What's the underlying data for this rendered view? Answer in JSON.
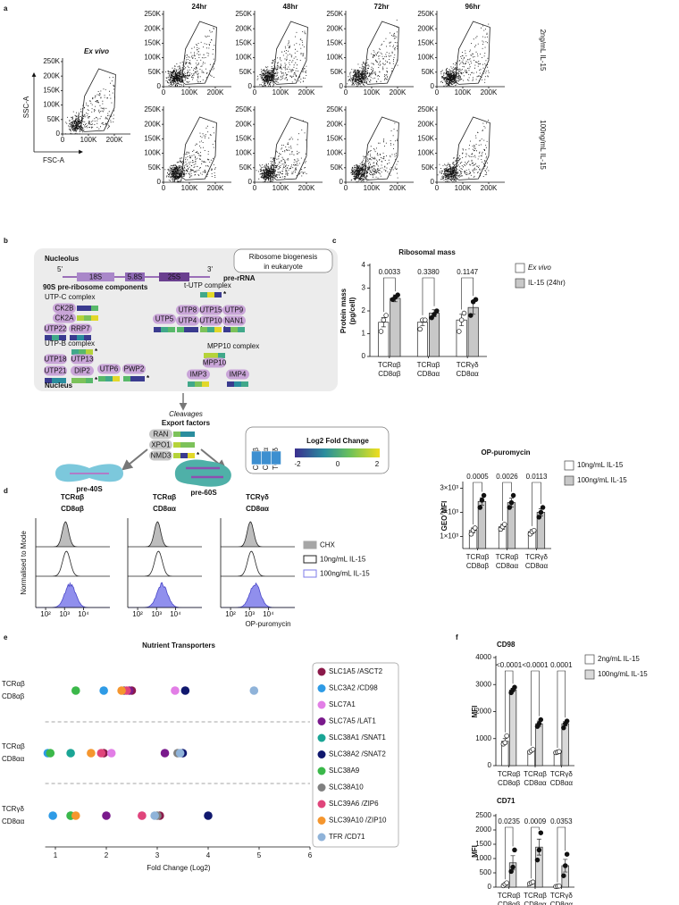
{
  "panel_labels": [
    "a",
    "b",
    "c",
    "d",
    "e",
    "f"
  ],
  "flow": {
    "ex_vivo": "Ex vivo",
    "x_label": "FSC-A",
    "y_label": "SSC-A",
    "times": [
      "24hr",
      "48hr",
      "72hr",
      "96hr"
    ],
    "conditions": [
      "2ng/mL IL-15",
      "100ng/mL IL-15"
    ],
    "xlim": [
      0,
      262144
    ],
    "ylim": [
      0,
      262144
    ],
    "xticks": [
      0,
      {
        "value": 100000,
        "label": "100K"
      },
      {
        "value": 200000,
        "label": "200K"
      }
    ],
    "yticks": [
      0,
      {
        "value": 50000,
        "label": "50K"
      },
      {
        "value": 100000,
        "label": "100K"
      },
      {
        "value": 150000,
        "label": "150K"
      },
      {
        "value": 200000,
        "label": "200K"
      },
      {
        "value": 250000,
        "label": "250K"
      }
    ]
  },
  "diagram": {
    "nucleolus": "Nucleolus",
    "biogenesis": [
      "Ribosome biogenesis",
      "in eukaryote"
    ],
    "prime5": "5'",
    "prime3": "3'",
    "rrna": [
      "18S",
      "5.8S",
      "25S"
    ],
    "pre_rrna": "pre-rRNA",
    "components": "90S pre-ribosome components",
    "complexes": [
      {
        "name": "UTP-C complex",
        "proteins": [
          "CK2B",
          "CK2A",
          "UTP22",
          "RRP7"
        ]
      },
      {
        "name": "t-UTP complex",
        "proteins": [
          "UTP5",
          "UTP8",
          "UTP4",
          "UTP15",
          "UTP10",
          "UTP9",
          "NAN1"
        ]
      },
      {
        "name": "UTP-B complex",
        "proteins": [
          "UTP18",
          "UTP13",
          "UTP21",
          "DIP2",
          "UTP6",
          "PWP2"
        ]
      },
      {
        "name": "MPP10 complex",
        "proteins": [
          "MPP10",
          "IMP3",
          "IMP4"
        ]
      }
    ],
    "nucleus": "Nucleus",
    "cleavages": "Cleavages",
    "export": "Export factors",
    "export_proteins": [
      "RAN",
      "XPO1",
      "NMD3"
    ],
    "pre40": "pre-40S",
    "pre60": "pre-60S",
    "heat_columns": [
      "CD8αβ",
      "CD8αα",
      "TCRγδ"
    ],
    "scale_title": "Log2 Fold Change",
    "scale_ticks": [
      "-2",
      "0",
      "2"
    ],
    "star": "*"
  },
  "flow_histograms": {
    "titles": [
      [
        "TCRαβ",
        "CD8αβ"
      ],
      [
        "TCRαβ",
        "CD8αα"
      ],
      [
        "TCRγδ",
        "CD8αα"
      ]
    ],
    "y_label": "Normalised to Mode",
    "x_label": "OP-puromycin",
    "log": true,
    "xlim": [
      30,
      250000
    ],
    "xticks": [
      {
        "value": 100,
        "label": "10²"
      },
      {
        "value": 1000,
        "label": "10³"
      },
      {
        "value": 10000,
        "label": "10⁴"
      }
    ],
    "legend": [
      "CHX",
      "10ng/mL IL-15",
      "100ng/mL IL-15"
    ],
    "colors": [
      "#a6a6a6",
      "#222222",
      "#7d7bea"
    ]
  },
  "chart_data": [
    {
      "type": "bar",
      "title": "Ribosomal mass",
      "y_label": [
        "Protein mass",
        "(pg/cell)"
      ],
      "categories": [
        [
          "TCRαβ",
          "CD8αβ"
        ],
        [
          "TCRαβ",
          "CD8αα"
        ],
        [
          "TCRγδ",
          "CD8αα"
        ]
      ],
      "ylim": [
        0,
        4
      ],
      "yticks": [
        0,
        1,
        2,
        3,
        4
      ],
      "series": [
        {
          "name": "Ex vivo",
          "color": "#ffffff",
          "values": [
            1.5,
            1.5,
            1.6
          ],
          "errors": [
            0.2,
            0.15,
            0.25
          ],
          "points": [
            [
              1.1,
              1.6,
              1.8
            ],
            [
              1.2,
              1.6,
              1.6
            ],
            [
              1.1,
              1.6,
              1.9
            ]
          ]
        },
        {
          "name": "IL-15 (24hr)",
          "color": "#c8c8c8",
          "values": [
            2.55,
            1.9,
            2.15
          ],
          "errors": [
            0.15,
            0.15,
            0.3
          ],
          "points": [
            [
              2.5,
              2.6,
              2.7
            ],
            [
              1.7,
              1.85,
              2.0
            ],
            [
              1.8,
              2.4,
              2.5
            ]
          ]
        }
      ],
      "p_values": [
        "0.0033",
        "0.3380",
        "0.1147"
      ]
    },
    {
      "type": "bar",
      "title": "OP-puromycin",
      "y_label": "GEO MFI",
      "categories": [
        [
          "TCRαβ",
          "CD8αβ"
        ],
        [
          "TCRαβ",
          "CD8αα"
        ],
        [
          "TCRγδ",
          "CD8αα"
        ]
      ],
      "ylim": [
        500,
        3200
      ],
      "yticks": [
        {
          "value": 1000,
          "label": "1×10³"
        },
        {
          "value": 2000,
          "label": "2×10³"
        },
        {
          "value": 3000,
          "label": "3×10³"
        }
      ],
      "series": [
        {
          "name": "10ng/mL IL-15",
          "color": "#ffffff",
          "values": [
            1250,
            1400,
            1200
          ],
          "errors": [
            100,
            100,
            80
          ],
          "points": [
            [
              1100,
              1250,
              1350
            ],
            [
              1300,
              1400,
              1500
            ],
            [
              1100,
              1200,
              1250
            ]
          ]
        },
        {
          "name": "100ng/mL IL-15",
          "color": "#c8c8c8",
          "values": [
            2450,
            2400,
            2000
          ],
          "errors": [
            150,
            180,
            150
          ],
          "points": [
            [
              2200,
              2500,
              2700
            ],
            [
              2200,
              2400,
              2700
            ],
            [
              1800,
              2000,
              2200
            ]
          ]
        }
      ],
      "p_values": [
        "0.0005",
        "0.0026",
        "0.0113"
      ]
    },
    {
      "type": "dot",
      "title": "Nutrient Transporters",
      "x_label": "Fold Change (Log2)",
      "categories": [
        [
          "TCRαβ",
          "CD8αβ"
        ],
        [
          "TCRαβ",
          "CD8αα"
        ],
        [
          "TCRγδ",
          "CD8αα"
        ]
      ],
      "xlim": [
        0.8,
        6
      ],
      "xticks": [
        1,
        2,
        3,
        4,
        5,
        6
      ],
      "series": [
        {
          "name": "SLC1A5 /ASCT2",
          "color": "#8b1a4a",
          "values": [
            2.5,
            1.95,
            3.05
          ]
        },
        {
          "name": "SLC3A2 /CD98",
          "color": "#2e9be6",
          "values": [
            1.95,
            0.85,
            0.95
          ]
        },
        {
          "name": "SLC7A1",
          "color": "#e27ee6",
          "values": [
            3.35,
            2.1,
            2.7
          ]
        },
        {
          "name": "SLC7A5 /LAT1",
          "color": "#7a1a8c",
          "values": [
            2.45,
            3.15,
            2.0
          ]
        },
        {
          "name": "SLC38A1 /SNAT1",
          "color": "#1aa595",
          "values": [
            2.35,
            1.3,
            1.3
          ]
        },
        {
          "name": "SLC38A2 /SNAT2",
          "color": "#10186e",
          "values": [
            3.55,
            3.5,
            4.0
          ]
        },
        {
          "name": "SLC38A9",
          "color": "#3bb84a",
          "values": [
            1.4,
            0.9,
            1.3
          ]
        },
        {
          "name": "SLC38A10",
          "color": "#808080",
          "values": [
            2.35,
            3.4,
            3.0
          ]
        },
        {
          "name": "SLC39A6 /ZIP6",
          "color": "#e0457b",
          "values": [
            2.4,
            1.9,
            2.7
          ]
        },
        {
          "name": "SLC39A10 /ZIP10",
          "color": "#f5962e",
          "values": [
            2.3,
            1.7,
            1.4
          ]
        },
        {
          "name": "TFR /CD71",
          "color": "#8fb3d9",
          "values": [
            4.9,
            3.45,
            2.95
          ]
        }
      ]
    },
    {
      "type": "bar",
      "title": "CD98",
      "y_label": "MFI",
      "categories": [
        [
          "TCRαβ",
          "CD8αβ"
        ],
        [
          "TCRαβ",
          "CD8αα"
        ],
        [
          "TCRγδ",
          "CD8αα"
        ]
      ],
      "ylim": [
        0,
        4000
      ],
      "yticks": [
        0,
        1000,
        2000,
        3000,
        4000
      ],
      "series": [
        {
          "name": "2ng/mL IL-15",
          "color": "#ffffff",
          "values": [
            900,
            550,
            500
          ],
          "errors": [
            100,
            30,
            20
          ],
          "points": [
            [
              800,
              850,
              1100
            ],
            [
              500,
              550,
              600
            ],
            [
              480,
              500,
              520
            ]
          ]
        },
        {
          "name": "100ng/mL IL-15",
          "color": "#d9d9d9",
          "values": [
            2800,
            1550,
            1550
          ],
          "errors": [
            60,
            100,
            80
          ],
          "points": [
            [
              2700,
              2800,
              2900
            ],
            [
              1450,
              1550,
              1700
            ],
            [
              1400,
              1550,
              1650
            ]
          ]
        }
      ],
      "p_values": [
        "<0.0001",
        "<0.0001",
        "0.0001"
      ]
    },
    {
      "type": "bar",
      "title": "CD71",
      "y_label": "MFI",
      "categories": [
        [
          "TCRαβ",
          "CD8αβ"
        ],
        [
          "TCRαβ",
          "CD8αα"
        ],
        [
          "TCRγδ",
          "CD8αα"
        ]
      ],
      "ylim": [
        0,
        2500
      ],
      "yticks": [
        0,
        500,
        1000,
        1500,
        2000,
        2500
      ],
      "series": [
        {
          "color": "#ffffff",
          "values": [
            100,
            150,
            30
          ],
          "errors": [
            30,
            20,
            10
          ],
          "points": [
            [
              50,
              100,
              150
            ],
            [
              120,
              150,
              180
            ],
            [
              20,
              30,
              40
            ]
          ]
        },
        {
          "color": "#d9d9d9",
          "values": [
            850,
            1400,
            750
          ],
          "errors": [
            250,
            280,
            220
          ],
          "points": [
            [
              550,
              700,
              1300
            ],
            [
              950,
              1300,
              1900
            ],
            [
              400,
              750,
              1150
            ]
          ]
        }
      ],
      "p_values": [
        "0.0235",
        "0.0009",
        "0.0353"
      ]
    }
  ]
}
